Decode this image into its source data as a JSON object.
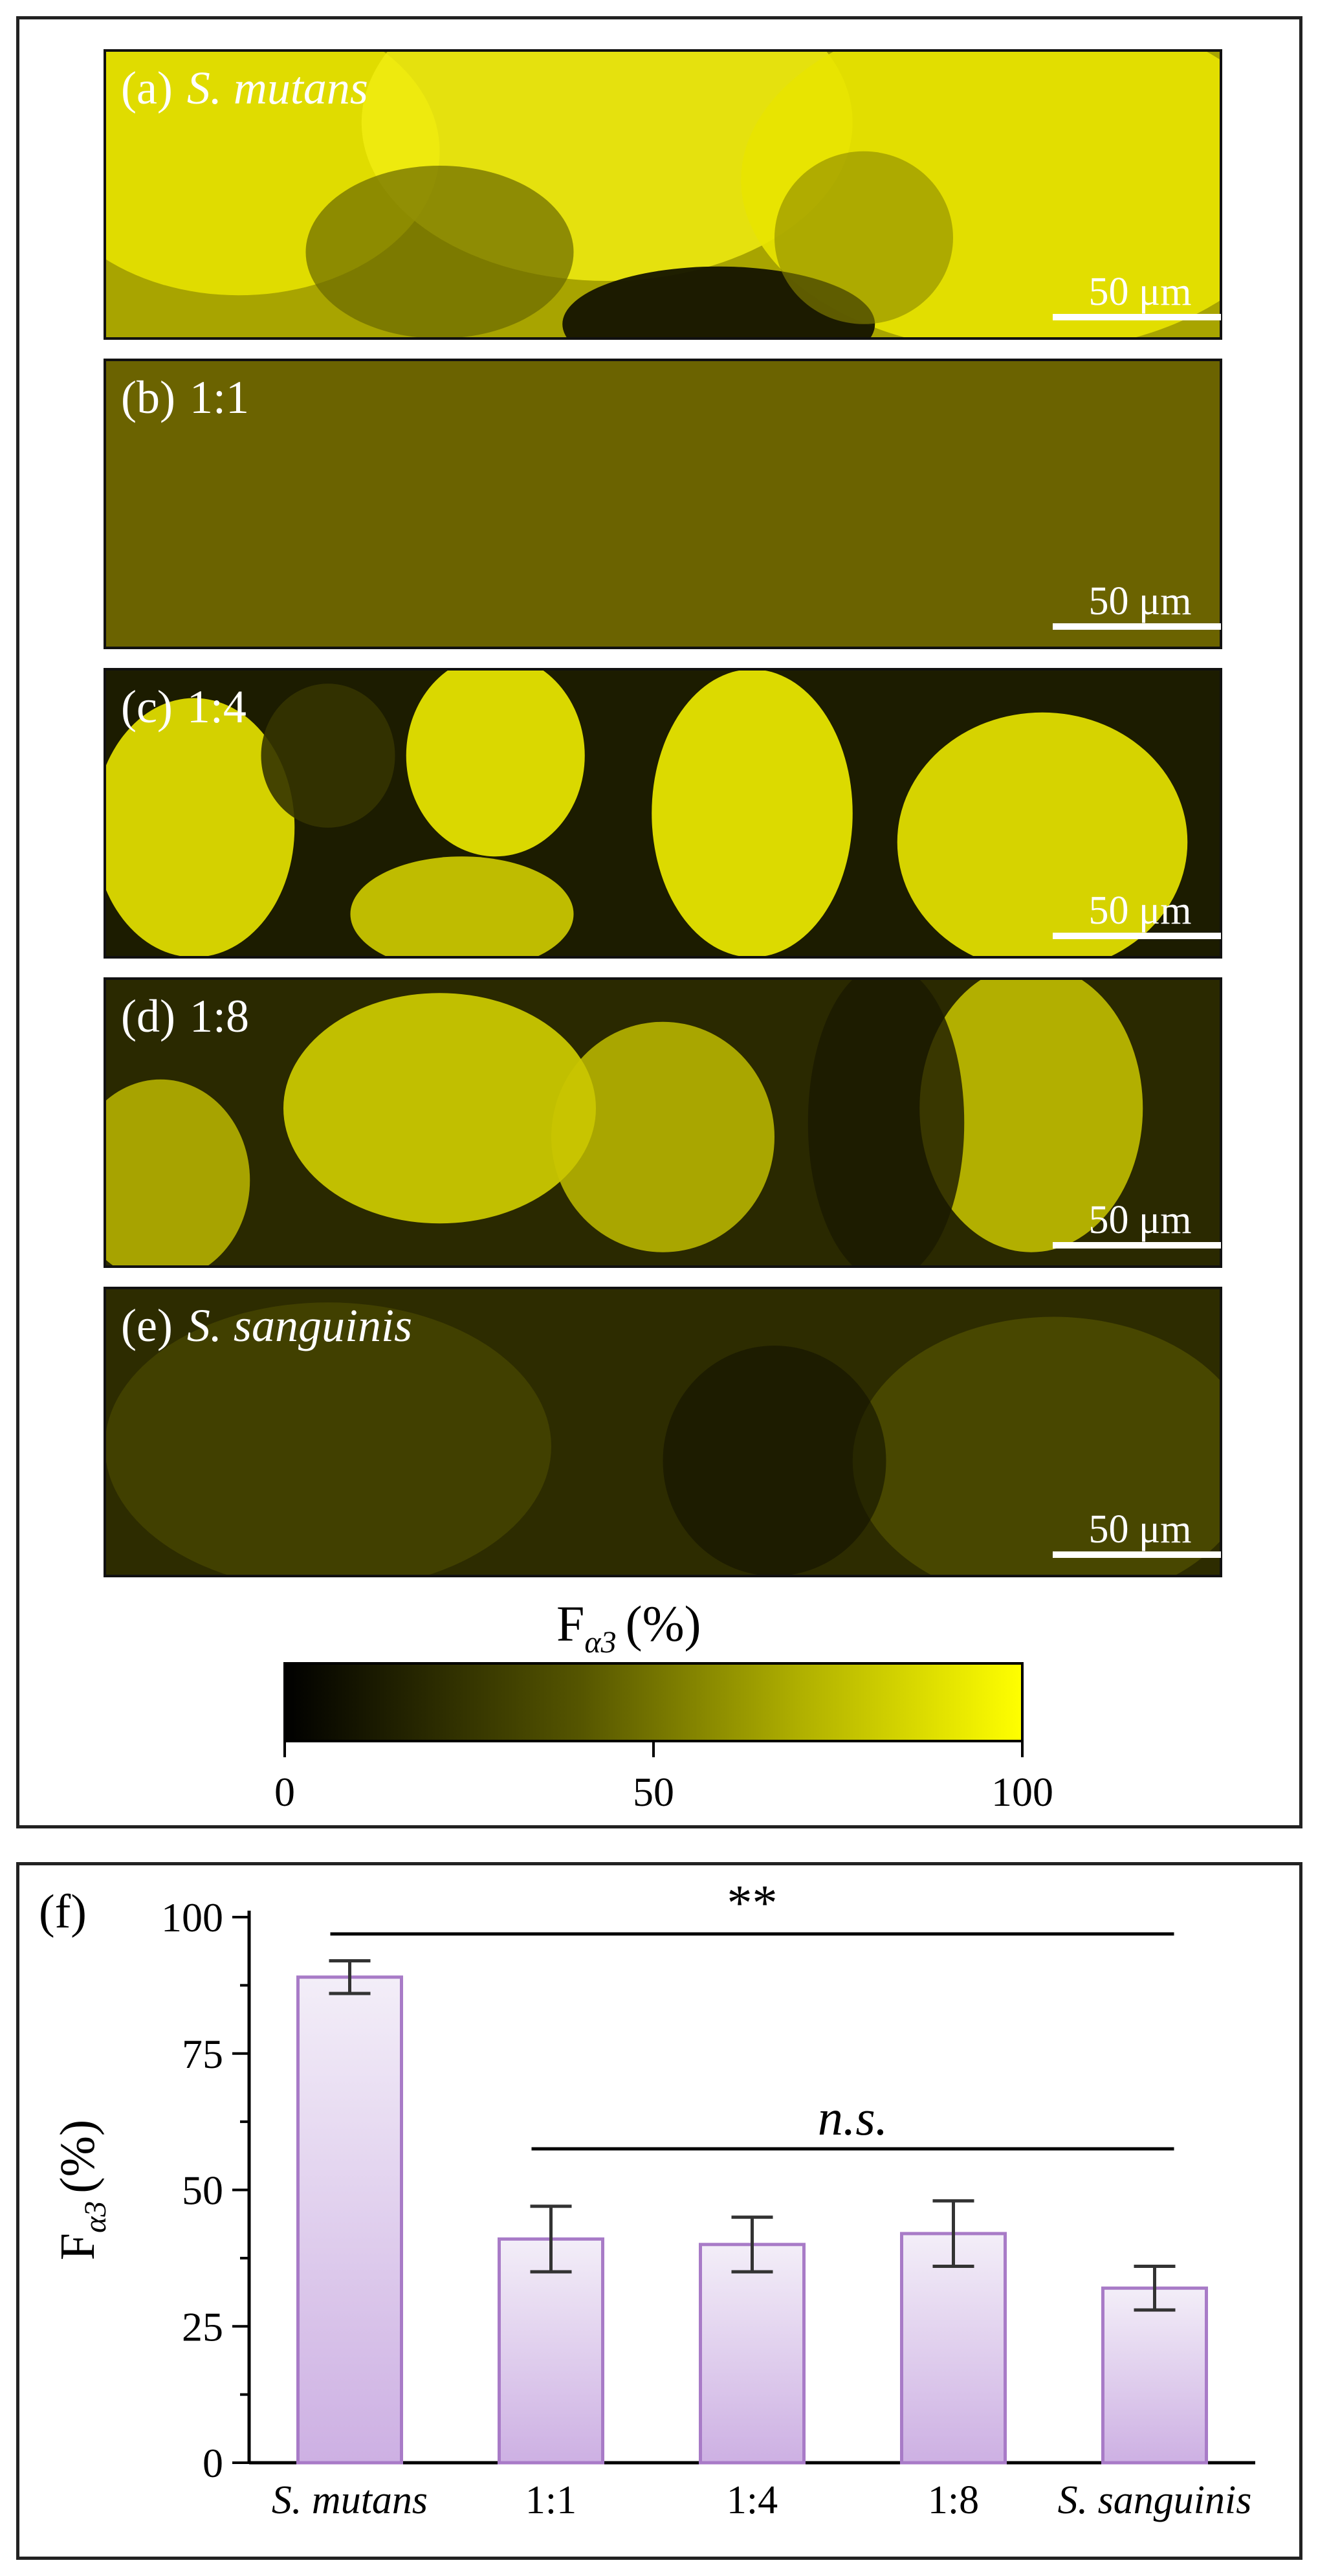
{
  "panels": [
    {
      "letter": "(a)",
      "label": "S. mutans",
      "italic": true,
      "scale_bar": "50 μm",
      "pattern": "mutans"
    },
    {
      "letter": "(b)",
      "label": "1:1",
      "italic": false,
      "scale_bar": "50 μm",
      "pattern": "uniform"
    },
    {
      "letter": "(c)",
      "label": "1:4",
      "italic": false,
      "scale_bar": "50 μm",
      "pattern": "patchy-strong"
    },
    {
      "letter": "(d)",
      "label": "1:8",
      "italic": false,
      "scale_bar": "50 μm",
      "pattern": "patchy-medium"
    },
    {
      "letter": "(e)",
      "label": "S. sanguinis",
      "italic": true,
      "scale_bar": "50 μm",
      "pattern": "dim"
    }
  ],
  "colorbar": {
    "title_main": "F",
    "title_sub": "α3",
    "title_unit": "(%)",
    "ticks": [
      "0",
      "50",
      "100"
    ],
    "color_low": "#000000",
    "color_high": "#ffff00"
  },
  "chart_data": {
    "type": "bar",
    "panel_letter": "(f)",
    "categories": [
      "S. mutans",
      "1:1",
      "1:4",
      "1:8",
      "S. sanguinis"
    ],
    "italic_categories": [
      true,
      false,
      false,
      false,
      true
    ],
    "values": [
      89,
      41,
      40,
      42,
      32
    ],
    "errors": [
      3,
      6,
      5,
      6,
      4
    ],
    "ylabel_main": "F",
    "ylabel_sub": "α3",
    "ylabel_unit": "(%)",
    "ylim": [
      0,
      100
    ],
    "yticks": [
      "0",
      "25",
      "50",
      "75",
      "100"
    ],
    "bar_color_top": "#f3eef8",
    "bar_color_bottom": "#cdb0e3",
    "bar_edge_color": "#a87bc7",
    "significance": [
      {
        "text": "**",
        "from": 0,
        "to": 4,
        "italic": false
      },
      {
        "text": "n.s.",
        "from": 1,
        "to": 4,
        "italic": true
      }
    ]
  }
}
